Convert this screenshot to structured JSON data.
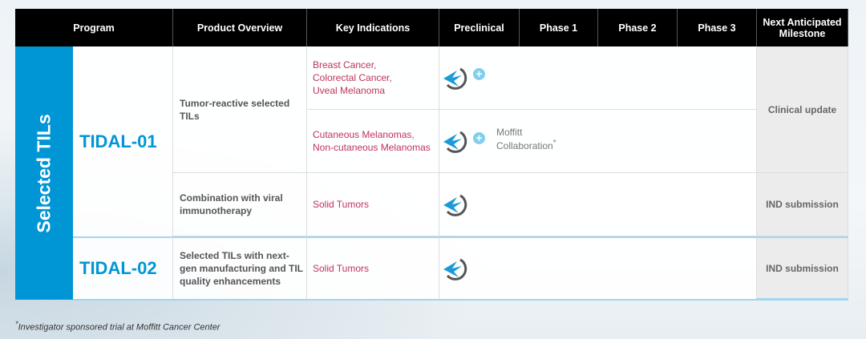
{
  "header": {
    "columns": [
      "Program",
      "Product Overview",
      "Key Indications",
      "Preclinical",
      "Phase 1",
      "Phase 2",
      "Phase 3",
      "Next Anticipated Milestone"
    ]
  },
  "group_label": "Selected TILs",
  "programs": [
    {
      "name": "TIDAL-01"
    },
    {
      "name": "TIDAL-02"
    }
  ],
  "rows": [
    {
      "overview": "Tumor-reactive selected TILs",
      "indications": [
        "Breast Cancer,",
        "Colorectal Cancer,",
        "Uveal Melanoma"
      ],
      "stage": "Preclinical",
      "plus": true,
      "note": ""
    },
    {
      "overview": "",
      "indications": [
        "Cutaneous Melanomas,",
        "Non-cutaneous Melanomas"
      ],
      "stage": "Preclinical",
      "plus": true,
      "note": "Moffitt Collaboration",
      "note_mark": "*"
    },
    {
      "overview": "Combination with viral immunotherapy",
      "indications": [
        "Solid Tumors"
      ],
      "stage": "Preclinical",
      "plus": false
    },
    {
      "overview": "Selected TILs with next-gen manufacturing and TIL quality enhancements",
      "indications": [
        "Solid Tumors"
      ],
      "stage": "Preclinical",
      "plus": false
    }
  ],
  "milestones": [
    "Clinical update",
    "IND submission",
    "IND submission"
  ],
  "footnote": {
    "mark": "*",
    "text": "Investigator sponsored trial at Moffitt Cancer Center"
  },
  "colors": {
    "accent": "#0096d6",
    "indication": "#c0325a",
    "header_bg": "#000000"
  },
  "icons": {
    "stage_logo": "company-logo-icon",
    "plus": "plus-circle-icon"
  }
}
